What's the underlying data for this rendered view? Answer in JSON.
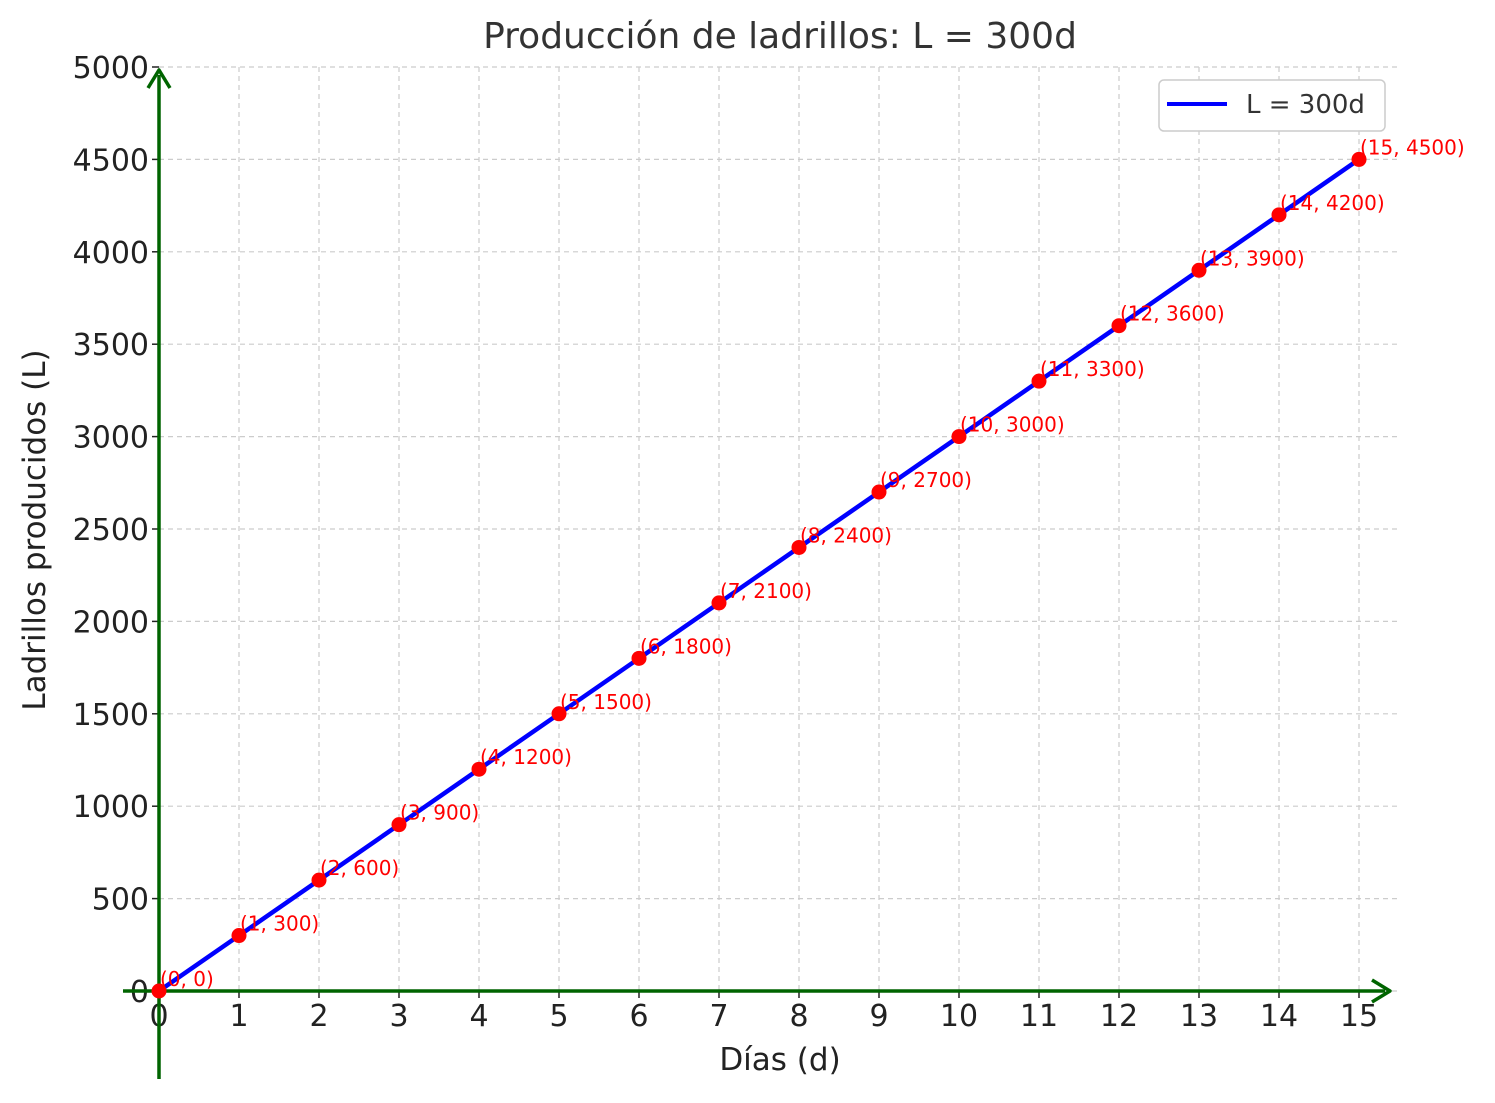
{
  "chart_data": {
    "type": "line",
    "title": "Producción de ladrillos: L = 300d",
    "xlabel": "Días (d)",
    "ylabel": "Ladrillos producidos (L)",
    "xlim": [
      0,
      15.4
    ],
    "ylim": [
      0,
      5000
    ],
    "x_ticks": [
      0,
      1,
      2,
      3,
      4,
      5,
      6,
      7,
      8,
      9,
      10,
      11,
      12,
      13,
      14,
      15
    ],
    "y_ticks": [
      0,
      500,
      1000,
      1500,
      2000,
      2500,
      3000,
      3500,
      4000,
      4500,
      5000
    ],
    "grid": true,
    "legend": {
      "placement": "top-right",
      "entries": [
        "L = 300d"
      ]
    },
    "series": [
      {
        "name": "L = 300d",
        "color": "#0000ff",
        "x": [
          0,
          1,
          2,
          3,
          4,
          5,
          6,
          7,
          8,
          9,
          10,
          11,
          12,
          13,
          14,
          15
        ],
        "y": [
          0,
          300,
          600,
          900,
          1200,
          1500,
          1800,
          2100,
          2400,
          2700,
          3000,
          3300,
          3600,
          3900,
          4200,
          4500
        ]
      }
    ],
    "points": {
      "color": "#ff0000",
      "labels": [
        "(0, 0)",
        "(1, 300)",
        "(2, 600)",
        "(3, 900)",
        "(4, 1200)",
        "(5, 1500)",
        "(6, 1800)",
        "(7, 2100)",
        "(8, 2400)",
        "(9, 2700)",
        "(10, 3000)",
        "(11, 3300)",
        "(12, 3600)",
        "(13, 3900)",
        "(14, 4200)",
        "(15, 4500)"
      ]
    },
    "axis_color": "#006400"
  }
}
